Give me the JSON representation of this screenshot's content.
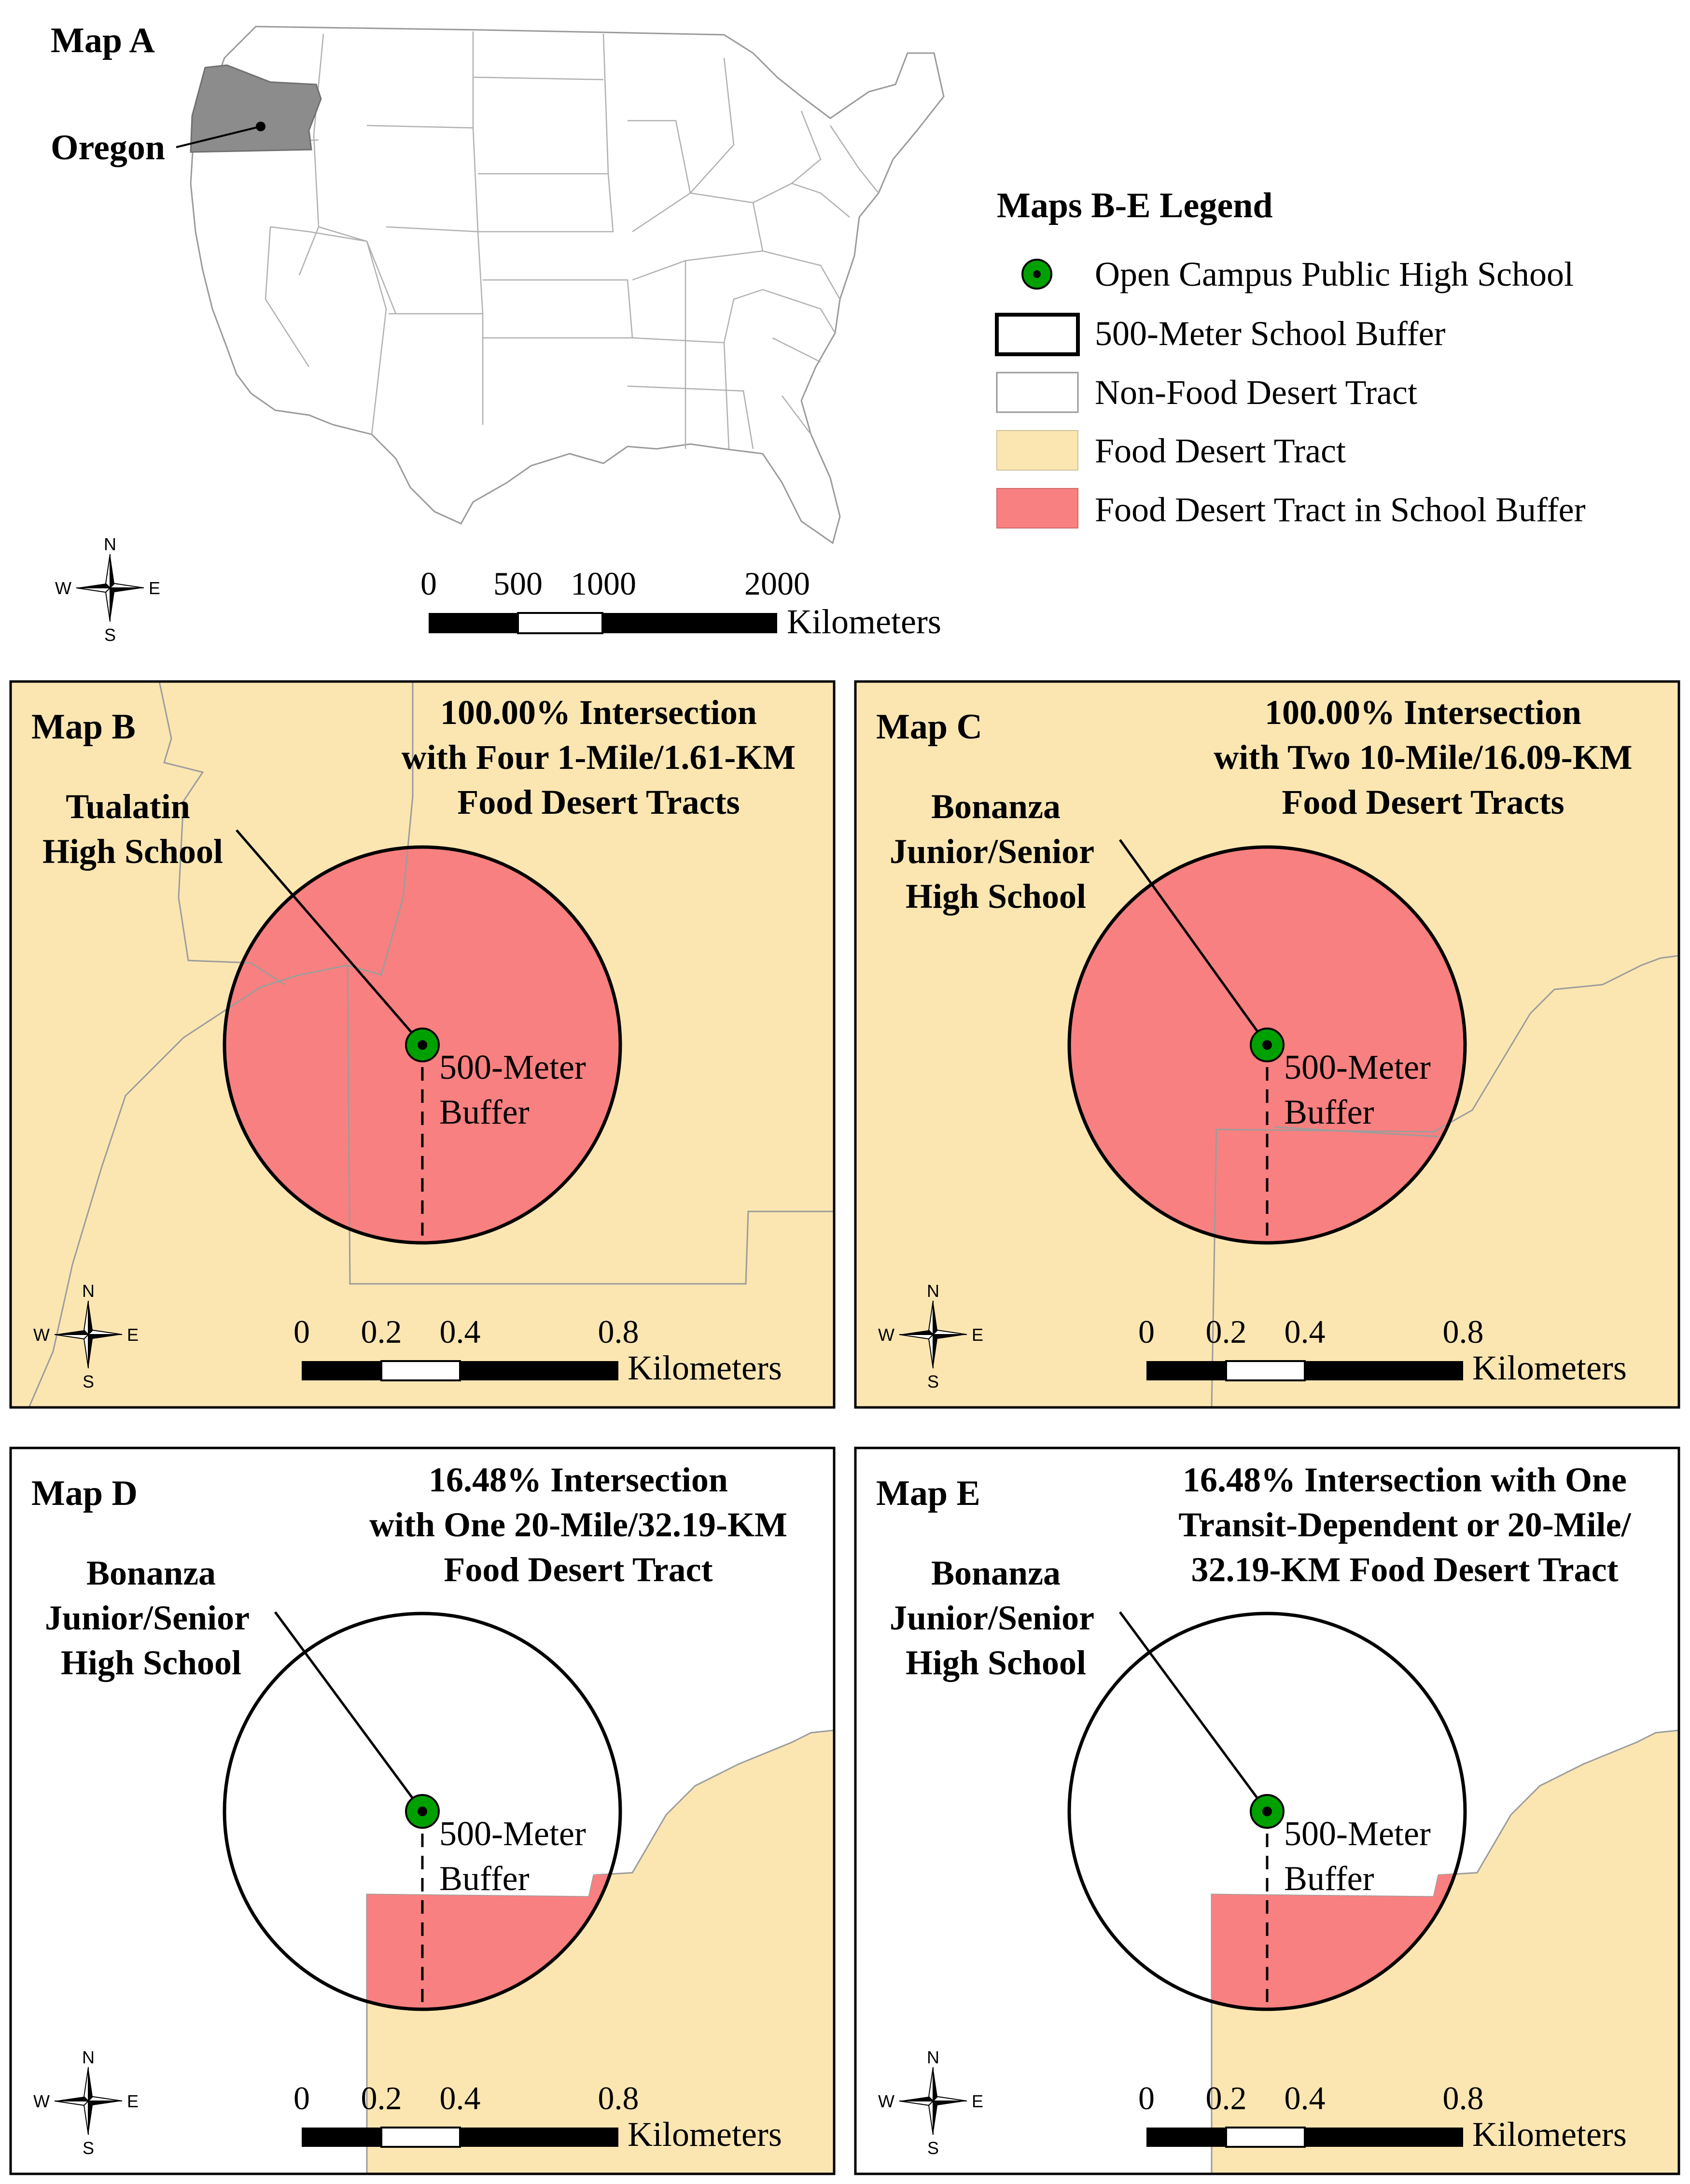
{
  "map_a": {
    "title": "Map A",
    "state_label": "Oregon",
    "highlight_color": "#8c8c8c",
    "scale": {
      "ticks": [
        "0",
        "500",
        "1000",
        "2000"
      ],
      "unit": "Kilometers"
    },
    "compass": {
      "n": "N",
      "s": "S",
      "e": "E",
      "w": "W"
    }
  },
  "legend": {
    "title": "Maps B-E Legend",
    "items": [
      {
        "label": "Open Campus Public High School",
        "symbol": "green-dot",
        "color": "#00a000"
      },
      {
        "label": "500-Meter School Buffer",
        "symbol": "bold-outline",
        "color": "#ffffff"
      },
      {
        "label": "Non-Food Desert Tract",
        "symbol": "thin-outline",
        "color": "#ffffff"
      },
      {
        "label": "Food Desert Tract",
        "symbol": "fill",
        "color": "#fbe6b2"
      },
      {
        "label": "Food Desert Tract in School Buffer",
        "symbol": "fill",
        "color": "#f98080"
      }
    ]
  },
  "panels": [
    {
      "title": "Map B",
      "heading": [
        "100.00% Intersection",
        "with Four 1-Mile/1.61-KM",
        "Food Desert Tracts"
      ],
      "school": [
        "Tualatin",
        "High School"
      ],
      "buffer_label": [
        "500-Meter",
        "Buffer"
      ],
      "scale": {
        "ticks": [
          "0",
          "0.2",
          "0.4",
          "0.8"
        ],
        "unit": "Kilometers"
      },
      "compass": {
        "n": "N",
        "s": "S",
        "e": "E",
        "w": "W"
      }
    },
    {
      "title": "Map C",
      "heading": [
        "100.00% Intersection",
        "with Two 10-Mile/16.09-KM",
        "Food Desert Tracts"
      ],
      "school": [
        "Bonanza",
        "Junior/Senior",
        "High School"
      ],
      "buffer_label": [
        "500-Meter",
        "Buffer"
      ],
      "scale": {
        "ticks": [
          "0",
          "0.2",
          "0.4",
          "0.8"
        ],
        "unit": "Kilometers"
      },
      "compass": {
        "n": "N",
        "s": "S",
        "e": "E",
        "w": "W"
      }
    },
    {
      "title": "Map D",
      "heading": [
        "16.48% Intersection",
        "with One 20-Mile/32.19-KM",
        "Food Desert Tract"
      ],
      "school": [
        "Bonanza",
        "Junior/Senior",
        "High School"
      ],
      "buffer_label": [
        "500-Meter",
        "Buffer"
      ],
      "scale": {
        "ticks": [
          "0",
          "0.2",
          "0.4",
          "0.8"
        ],
        "unit": "Kilometers"
      },
      "compass": {
        "n": "N",
        "s": "S",
        "e": "E",
        "w": "W"
      }
    },
    {
      "title": "Map E",
      "heading": [
        "16.48% Intersection with One",
        "Transit-Dependent or 20-Mile/",
        "32.19-KM Food Desert Tract"
      ],
      "school": [
        "Bonanza",
        "Junior/Senior",
        "High School"
      ],
      "buffer_label": [
        "500-Meter",
        "Buffer"
      ],
      "scale": {
        "ticks": [
          "0",
          "0.2",
          "0.4",
          "0.8"
        ],
        "unit": "Kilometers"
      },
      "compass": {
        "n": "N",
        "s": "S",
        "e": "E",
        "w": "W"
      }
    }
  ]
}
